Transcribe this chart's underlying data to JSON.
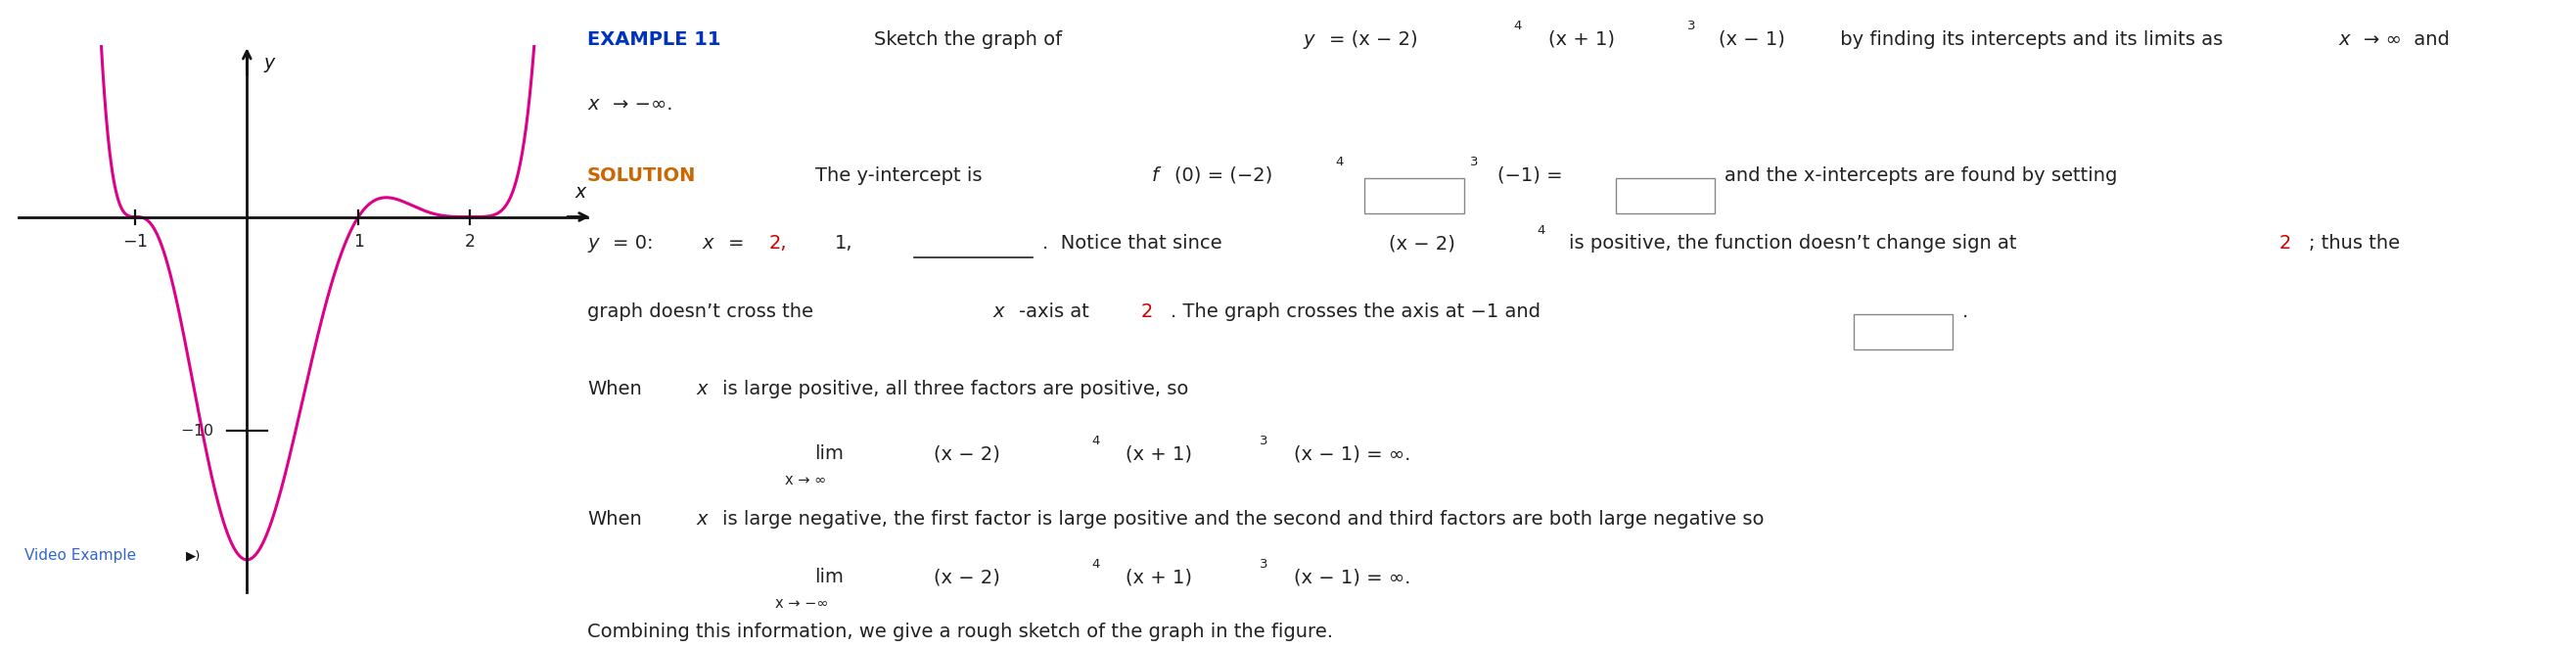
{
  "curve_color": "#DD0088",
  "axis_color": "#111111",
  "text_color": "#222222",
  "example_color": "#0033BB",
  "solution_color": "#CC6600",
  "highlight_color": "#CC0000",
  "link_color": "#3366CC",
  "bg": "#ffffff",
  "xlim": [
    -2.1,
    3.1
  ],
  "ylim": [
    -18,
    8
  ],
  "xtick_vals": [
    -1,
    1,
    2
  ],
  "ytick_val": -10,
  "fs": 14.0,
  "fs_sup": 9.5,
  "fs_sub": 10.5
}
